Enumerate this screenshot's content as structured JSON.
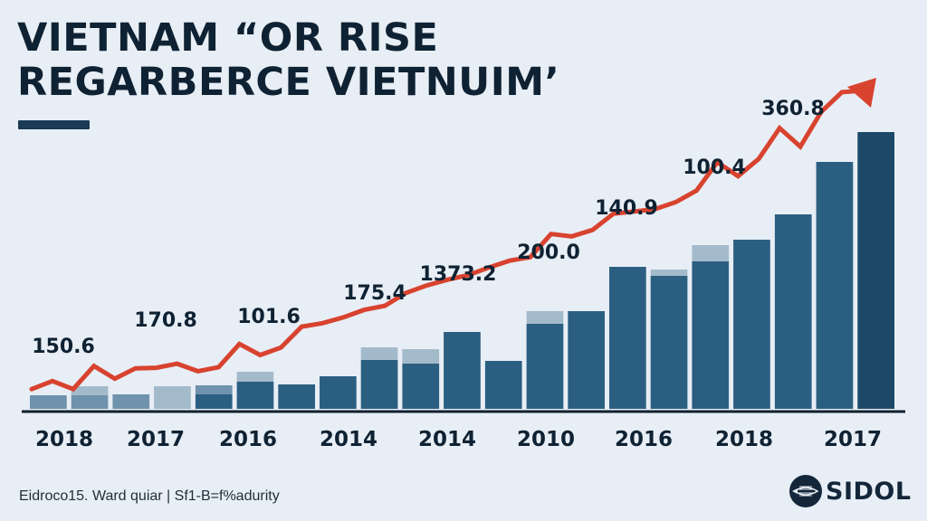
{
  "title": {
    "line1": "VIETNAM “OR RISE",
    "line2": "REGARBERCE VIETNUIM’"
  },
  "footer": {
    "note": "Eidroco15. Ward quiar | Sf1-B=f%adurity",
    "logo_text": "SIDOL",
    "logo_icon": "globe-ship-icon"
  },
  "colors": {
    "background": "#e8eef5",
    "bar_dark": "#2b5f82",
    "bar_light": "#a3bacb",
    "bar_mid": "#6f92ad",
    "bar_last": "#1c4968",
    "line": "#d8432f",
    "axis": "#10202e",
    "text": "#0f2233"
  },
  "chart_data": {
    "type": "bar",
    "title": "VIETNAM “OR RISE REGARBERCE VIETNUIM’",
    "xlabel": "",
    "ylabel": "",
    "ylim": [
      0,
      320
    ],
    "grid": false,
    "legend": "none",
    "x_tick_labels": [
      "2018",
      "2017",
      "2016",
      "2014",
      "2014",
      "2010",
      "2016",
      "2018",
      "2017"
    ],
    "bars": [
      {
        "base": 15,
        "cap": 0,
        "tone": "mid"
      },
      {
        "base": 15,
        "cap": 10,
        "tone": "light-stack"
      },
      {
        "base": 16,
        "cap": 0,
        "tone": "mid"
      },
      {
        "base": 25,
        "cap": 0,
        "tone": "light"
      },
      {
        "base": 16,
        "cap": 10,
        "tone": "dark-stack-mid"
      },
      {
        "base": 30,
        "cap": 11,
        "tone": "dark"
      },
      {
        "base": 27,
        "cap": 0,
        "tone": "dark"
      },
      {
        "base": 36,
        "cap": 0,
        "tone": "dark"
      },
      {
        "base": 54,
        "cap": 14,
        "tone": "dark"
      },
      {
        "base": 50,
        "cap": 16,
        "tone": "dark"
      },
      {
        "base": 85,
        "cap": 0,
        "tone": "dark"
      },
      {
        "base": 53,
        "cap": 0,
        "tone": "dark"
      },
      {
        "base": 94,
        "cap": 14,
        "tone": "dark"
      },
      {
        "base": 108,
        "cap": 0,
        "tone": "dark"
      },
      {
        "base": 157,
        "cap": 0,
        "tone": "dark"
      },
      {
        "base": 147,
        "cap": 7,
        "tone": "dark"
      },
      {
        "base": 163,
        "cap": 18,
        "tone": "dark"
      },
      {
        "base": 187,
        "cap": 0,
        "tone": "dark"
      },
      {
        "base": 215,
        "cap": 0,
        "tone": "dark"
      },
      {
        "base": 273,
        "cap": 0,
        "tone": "dark"
      },
      {
        "base": 306,
        "cap": 0,
        "tone": "darkest"
      }
    ],
    "line_series": {
      "name": "trend",
      "values": [
        34,
        48,
        34,
        74,
        52,
        70,
        71,
        78,
        65,
        72,
        112,
        93,
        106,
        142,
        148,
        158,
        171,
        178,
        200,
        213,
        223,
        231,
        244,
        256,
        262,
        302,
        298,
        309,
        337,
        341,
        345,
        357,
        377,
        426,
        402,
        432,
        485,
        453,
        513,
        547
      ],
      "description": "trend line rising left to right, ending in arrow",
      "arrow_end": true
    },
    "data_labels": [
      {
        "text": "150.6",
        "at": 1
      },
      {
        "text": "170.8",
        "at": 5
      },
      {
        "text": "101.6",
        "at": 10
      },
      {
        "text": "175.4",
        "at": 14
      },
      {
        "text": "1373.2",
        "at": 18
      },
      {
        "text": "200.0",
        "at": 23
      },
      {
        "text": "140.9",
        "at": 27
      },
      {
        "text": "100.4",
        "at": 33
      },
      {
        "text": "360.8",
        "at": 37
      }
    ]
  }
}
